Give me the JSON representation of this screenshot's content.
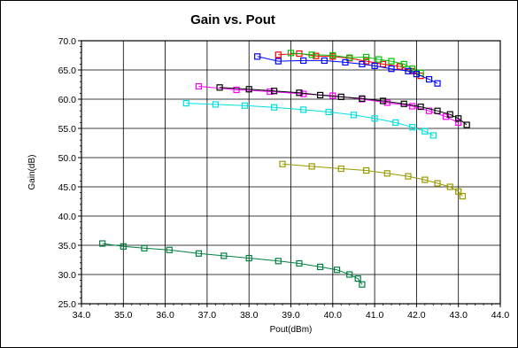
{
  "chart_data": {
    "type": "line",
    "title": "Gain vs. Pout",
    "xlabel": "Pout(dBm)",
    "ylabel": "Gain(dB)",
    "xlim": [
      34.0,
      44.0
    ],
    "ylim": [
      25.0,
      70.0
    ],
    "x_ticks": [
      "34.0",
      "35.0",
      "36.0",
      "37.0",
      "38.0",
      "39.0",
      "40.0",
      "41.0",
      "42.0",
      "43.0",
      "44.0"
    ],
    "y_ticks": [
      "25.0",
      "30.0",
      "35.0",
      "40.0",
      "45.0",
      "50.0",
      "55.0",
      "60.0",
      "65.0",
      "70.0"
    ],
    "grid": true,
    "marker": "square",
    "series": [
      {
        "color": "#ff0000",
        "x": [
          38.7,
          39.2,
          39.6,
          40.0,
          40.4,
          40.8,
          41.2,
          41.6,
          41.9,
          42.1
        ],
        "y": [
          67.6,
          67.8,
          67.4,
          67.3,
          67.0,
          66.5,
          66.0,
          65.6,
          64.8,
          64.0
        ]
      },
      {
        "color": "#00c000",
        "x": [
          39.0,
          39.5,
          40.0,
          40.4,
          40.8,
          41.1,
          41.4,
          41.7,
          41.9,
          42.1
        ],
        "y": [
          67.9,
          67.6,
          67.5,
          67.1,
          67.2,
          66.8,
          66.5,
          66.0,
          65.2,
          64.5
        ]
      },
      {
        "color": "#0000ff",
        "x": [
          38.2,
          38.7,
          39.3,
          39.8,
          40.3,
          40.7,
          41.0,
          41.4,
          41.8,
          42.0,
          42.3,
          42.5
        ],
        "y": [
          67.3,
          66.5,
          66.6,
          66.6,
          66.3,
          66.0,
          65.7,
          65.2,
          64.8,
          64.3,
          63.4,
          62.7
        ]
      },
      {
        "color": "#ff00ff",
        "x": [
          36.8,
          37.7,
          38.5,
          39.3,
          40.0,
          40.7,
          41.3,
          41.9,
          42.3,
          42.7,
          43.0
        ],
        "y": [
          62.2,
          61.6,
          61.3,
          60.9,
          60.6,
          60.0,
          59.4,
          58.8,
          58.0,
          57.0,
          56.0
        ]
      },
      {
        "color": "#000000",
        "x": [
          37.3,
          38.0,
          38.6,
          39.2,
          39.7,
          40.2,
          40.7,
          41.2,
          41.7,
          42.1,
          42.5,
          42.8,
          43.0,
          43.2
        ],
        "y": [
          62.0,
          61.7,
          61.4,
          61.1,
          60.7,
          60.4,
          60.1,
          59.7,
          59.2,
          58.7,
          58.0,
          57.4,
          56.7,
          55.6
        ]
      },
      {
        "color": "#00e0e0",
        "x": [
          36.5,
          37.2,
          37.9,
          38.6,
          39.3,
          39.9,
          40.5,
          41.0,
          41.5,
          41.9,
          42.2,
          42.4
        ],
        "y": [
          59.3,
          59.1,
          58.9,
          58.6,
          58.2,
          57.8,
          57.3,
          56.7,
          56.0,
          55.2,
          54.5,
          53.8
        ]
      },
      {
        "color": "#999900",
        "x": [
          38.8,
          39.5,
          40.2,
          40.8,
          41.3,
          41.8,
          42.2,
          42.5,
          42.8,
          43.0,
          43.1
        ],
        "y": [
          48.9,
          48.5,
          48.1,
          47.8,
          47.3,
          46.8,
          46.2,
          45.6,
          45.0,
          44.2,
          43.4
        ]
      },
      {
        "color": "#008040",
        "x": [
          34.5,
          35.0,
          35.5,
          36.1,
          36.8,
          37.4,
          38.0,
          38.7,
          39.2,
          39.7,
          40.1,
          40.4,
          40.6,
          40.7
        ],
        "y": [
          35.3,
          34.8,
          34.5,
          34.2,
          33.6,
          33.2,
          32.8,
          32.3,
          31.9,
          31.3,
          30.8,
          30.0,
          29.3,
          28.3
        ]
      }
    ]
  }
}
